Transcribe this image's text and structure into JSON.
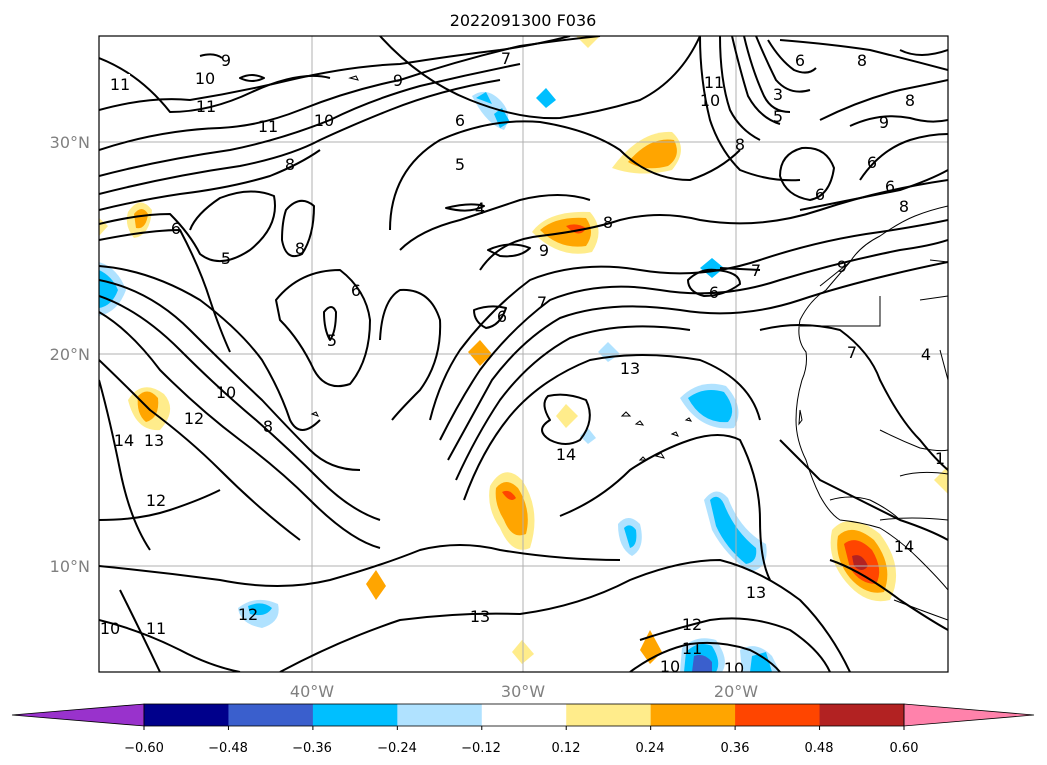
{
  "title": "2022091300 F036",
  "map": {
    "lat_labels": [
      {
        "lat": 30,
        "label": "30°N"
      },
      {
        "lat": 20,
        "label": "20°N"
      },
      {
        "lat": 10,
        "label": "10°N"
      }
    ],
    "lon_labels": [
      {
        "lon": -40,
        "label": "40°W"
      },
      {
        "lon": -30,
        "label": "30°W"
      },
      {
        "lon": -20,
        "label": "20°W"
      }
    ],
    "extent": {
      "lon_min": -50,
      "lon_max": -10,
      "lat_min": 5,
      "lat_max": 35
    },
    "contour_labels": [
      "11",
      "10",
      "9",
      "11",
      "11",
      "10",
      "8",
      "6",
      "5",
      "8",
      "6",
      "5",
      "10",
      "12",
      "8",
      "14",
      "13",
      "12",
      "10",
      "11",
      "12",
      "7",
      "9",
      "6",
      "5",
      "4",
      "8",
      "9",
      "6",
      "7",
      "6",
      "13",
      "14",
      "13",
      "12",
      "11",
      "10",
      "10",
      "11",
      "10",
      "3",
      "5",
      "6",
      "8",
      "8",
      "8",
      "9",
      "6",
      "6",
      "6",
      "7",
      "9",
      "7",
      "4",
      "8",
      "1",
      "14",
      "13"
    ]
  },
  "colorbar": {
    "ticks": [
      "−0.60",
      "−0.48",
      "−0.36",
      "−0.24",
      "−0.12",
      "0.12",
      "0.24",
      "0.36",
      "0.48",
      "0.60"
    ],
    "colors": [
      "#9932cc",
      "#00008b",
      "#3a5fcd",
      "#00bfff",
      "#b0e2ff",
      "#ffffff",
      "#ffec8b",
      "#ffa500",
      "#ff4500",
      "#b22222",
      "#ff82ab"
    ]
  },
  "colors": {
    "light_blue": "#b0e2ff",
    "blue": "#00bfff",
    "mid_blue": "#3a5fcd",
    "navy": "#00008b",
    "yellow": "#ffec8b",
    "orange": "#ffa500",
    "red_orange": "#ff4500",
    "dark_red": "#b22222"
  }
}
